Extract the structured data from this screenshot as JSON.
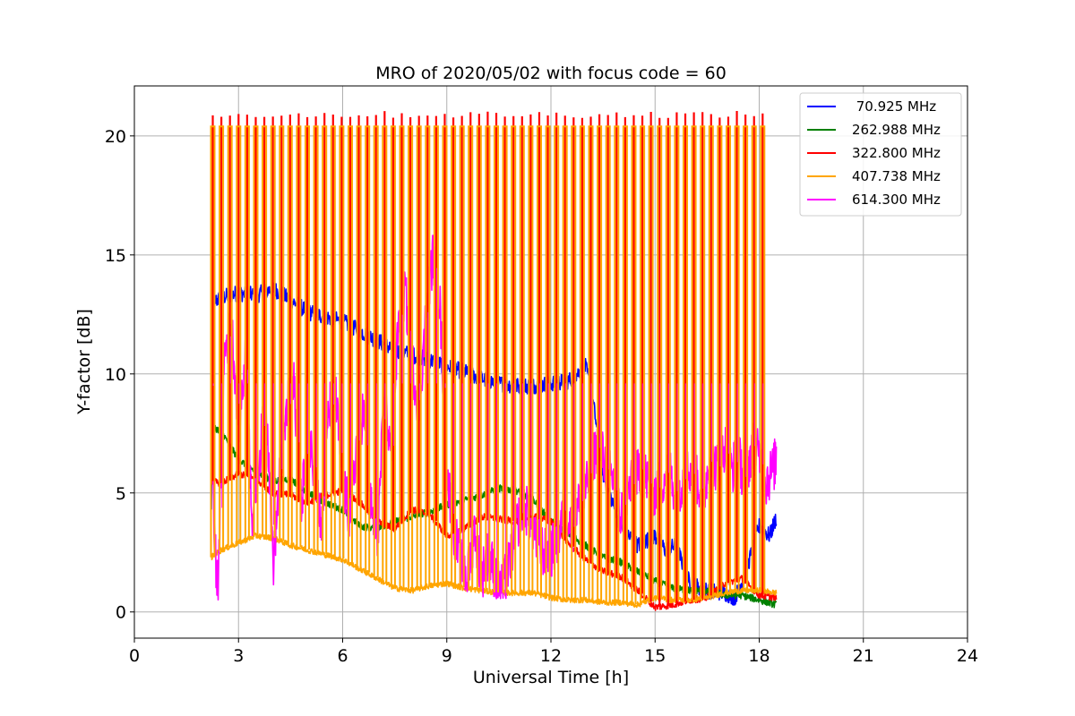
{
  "chart_data": {
    "type": "line",
    "title": "MRO of 2020/05/02 with focus code = 60",
    "xlabel": "Universal Time [h]",
    "ylabel": "Y-factor [dB]",
    "xlim": [
      0,
      24
    ],
    "ylim": [
      -1.1,
      22.1
    ],
    "xticks": [
      0,
      3,
      6,
      9,
      12,
      15,
      18,
      21,
      24
    ],
    "yticks": [
      0,
      5,
      10,
      15,
      20
    ],
    "grid": true,
    "legend_position": "top-right",
    "spike_series": "407.738 MHz",
    "spike_period_h": 0.2475,
    "spike_span_h": [
      2.22,
      18.3
    ],
    "spike_peak_db": 20.4,
    "series": [
      {
        "name": " 70.925 MHz",
        "color": "#0000ff",
        "noise_db": 0.35,
        "x": [
          2.22,
          2.25,
          2.5,
          3.0,
          3.5,
          4.0,
          4.5,
          5.0,
          5.5,
          6.0,
          6.5,
          7.0,
          7.5,
          8.0,
          8.5,
          9.0,
          9.5,
          10.0,
          10.5,
          11.0,
          11.5,
          12.0,
          12.5,
          13.0,
          13.2,
          13.5,
          14.0,
          14.5,
          15.0,
          15.3,
          15.6,
          16.0,
          16.5,
          17.0,
          17.3,
          17.6,
          18.0,
          18.3,
          18.5
        ],
        "y": [
          4.2,
          13.0,
          13.2,
          13.4,
          13.3,
          13.6,
          13.1,
          12.6,
          12.4,
          12.2,
          11.8,
          11.4,
          11.0,
          10.8,
          10.6,
          10.3,
          10.1,
          9.8,
          9.6,
          9.5,
          9.5,
          9.6,
          9.7,
          10.3,
          9.0,
          5.8,
          3.6,
          2.8,
          3.2,
          2.6,
          2.8,
          1.2,
          0.9,
          0.8,
          0.6,
          1.6,
          3.6,
          3.2,
          4.0
        ]
      },
      {
        "name": "262.988 MHz",
        "color": "#008000",
        "noise_db": 0.15,
        "x": [
          2.22,
          2.5,
          3.0,
          3.5,
          4.0,
          4.5,
          5.0,
          5.5,
          6.0,
          6.5,
          7.0,
          7.5,
          8.0,
          8.5,
          9.0,
          9.5,
          10.0,
          10.5,
          11.0,
          11.5,
          12.0,
          12.5,
          13.0,
          13.5,
          14.0,
          14.5,
          15.0,
          15.5,
          16.0,
          16.5,
          17.0,
          17.5,
          18.0,
          18.5
        ],
        "y": [
          7.8,
          7.6,
          6.4,
          5.9,
          5.5,
          5.6,
          5.0,
          4.6,
          4.3,
          3.6,
          3.5,
          3.8,
          4.0,
          4.2,
          4.5,
          4.7,
          4.9,
          5.2,
          5.1,
          4.7,
          3.8,
          3.3,
          2.8,
          2.3,
          2.1,
          1.7,
          1.3,
          1.0,
          0.9,
          0.9,
          0.7,
          0.7,
          0.5,
          0.3
        ]
      },
      {
        "name": "322.800 MHz",
        "color": "#ff0000",
        "noise_db": 0.15,
        "x": [
          2.22,
          2.5,
          3.0,
          3.5,
          4.0,
          4.5,
          5.0,
          5.5,
          6.0,
          6.5,
          7.0,
          7.5,
          8.0,
          8.5,
          9.0,
          9.5,
          10.0,
          10.5,
          11.0,
          11.5,
          12.0,
          12.5,
          13.0,
          13.5,
          14.0,
          14.5,
          15.0,
          15.5,
          16.0,
          16.5,
          17.0,
          17.5,
          18.0,
          18.5
        ],
        "y": [
          5.5,
          5.4,
          5.8,
          5.6,
          5.0,
          4.9,
          4.6,
          4.9,
          5.1,
          4.6,
          3.8,
          3.5,
          4.3,
          4.1,
          3.2,
          3.5,
          4.0,
          3.9,
          3.8,
          4.0,
          3.8,
          2.9,
          2.2,
          1.7,
          1.5,
          0.9,
          0.2,
          0.3,
          0.5,
          0.6,
          1.2,
          1.4,
          0.7,
          0.6
        ]
      },
      {
        "name": "407.738 MHz",
        "color": "#ffa500",
        "noise_db": 0.12,
        "x": [
          2.22,
          2.5,
          3.0,
          3.5,
          4.0,
          4.5,
          5.0,
          5.5,
          6.0,
          6.5,
          7.0,
          7.5,
          8.0,
          8.5,
          9.0,
          9.5,
          10.0,
          10.5,
          11.0,
          11.5,
          12.0,
          12.5,
          13.0,
          13.5,
          14.0,
          14.5,
          15.0,
          15.5,
          16.0,
          16.5,
          17.0,
          17.5,
          18.0,
          18.5
        ],
        "y": [
          2.3,
          2.6,
          2.9,
          3.2,
          3.1,
          2.8,
          2.6,
          2.4,
          2.2,
          1.8,
          1.4,
          1.0,
          0.9,
          1.1,
          1.2,
          1.0,
          0.9,
          0.8,
          0.8,
          0.8,
          0.6,
          0.5,
          0.5,
          0.4,
          0.4,
          0.3,
          0.6,
          0.5,
          0.5,
          0.6,
          0.8,
          0.9,
          0.9,
          0.8
        ]
      },
      {
        "name": "614.300 MHz",
        "color": "#ff00ff",
        "noise_db": 1.1,
        "x": [
          2.22,
          2.3,
          2.4,
          2.6,
          2.8,
          3.0,
          3.2,
          3.4,
          3.6,
          3.8,
          4.0,
          4.2,
          4.4,
          4.6,
          4.8,
          5.0,
          5.2,
          5.4,
          5.6,
          5.8,
          6.0,
          6.2,
          6.4,
          6.6,
          6.8,
          7.0,
          7.2,
          7.4,
          7.6,
          7.8,
          8.0,
          8.2,
          8.4,
          8.6,
          8.8,
          9.0,
          9.2,
          9.4,
          9.6,
          9.8,
          10.0,
          10.2,
          10.4,
          10.6,
          10.8,
          11.0,
          11.2,
          11.4,
          11.6,
          11.8,
          12.0,
          12.2,
          12.4,
          12.6,
          12.8,
          13.0,
          13.2,
          13.4,
          13.6,
          13.8,
          14.0,
          14.2,
          14.4,
          14.6,
          14.8,
          15.0,
          15.2,
          15.4,
          15.6,
          15.8,
          16.0,
          16.2,
          16.4,
          16.6,
          16.8,
          17.0,
          17.2,
          17.4,
          17.6,
          17.8,
          18.0,
          18.2,
          18.4,
          18.5
        ],
        "y": [
          9.5,
          3.0,
          1.0,
          11.0,
          12.0,
          8.0,
          10.5,
          4.0,
          6.5,
          9.0,
          2.0,
          6.0,
          8.5,
          9.5,
          4.5,
          7.5,
          6.0,
          3.5,
          8.5,
          9.0,
          5.5,
          4.0,
          7.0,
          8.5,
          4.5,
          3.0,
          9.0,
          6.5,
          12.0,
          13.5,
          10.5,
          8.5,
          12.5,
          15.0,
          13.0,
          6.0,
          3.5,
          2.0,
          1.5,
          3.5,
          1.5,
          2.5,
          1.5,
          1.0,
          2.0,
          3.5,
          4.5,
          4.0,
          3.0,
          2.5,
          2.5,
          3.0,
          4.5,
          3.5,
          4.5,
          5.0,
          6.5,
          7.0,
          6.0,
          5.5,
          4.0,
          5.0,
          5.5,
          6.0,
          5.5,
          5.0,
          5.5,
          6.0,
          5.0,
          5.5,
          6.0,
          5.5,
          5.0,
          6.5,
          6.0,
          7.0,
          6.0,
          6.5,
          5.5,
          7.0,
          6.5,
          5.5,
          6.0,
          6.5
        ]
      }
    ]
  }
}
